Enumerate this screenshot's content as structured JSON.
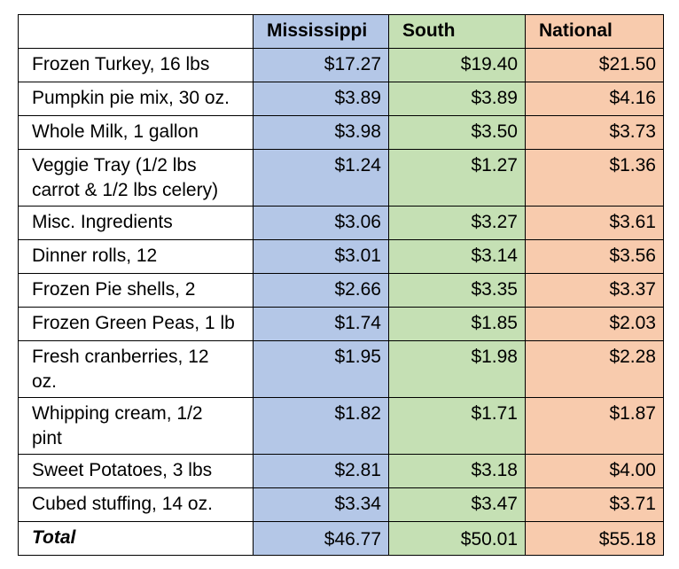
{
  "table": {
    "headers": [
      "",
      "Mississippi",
      "South",
      "National"
    ],
    "rows": [
      {
        "item": "Frozen Turkey, 16 lbs",
        "mississippi": "$17.27",
        "south": "$19.40",
        "national": "$21.50"
      },
      {
        "item": "Pumpkin pie mix, 30 oz.",
        "mississippi": "$3.89",
        "south": "$3.89",
        "national": "$4.16"
      },
      {
        "item": "Whole Milk, 1 gallon",
        "mississippi": "$3.98",
        "south": "$3.50",
        "national": "$3.73"
      },
      {
        "item_line1": "Veggie Tray (1/2 lbs",
        "item_line2": "carrot & 1/2 lbs celery)",
        "mississippi": "$1.24",
        "south": "$1.27",
        "national": "$1.36"
      },
      {
        "item": "Misc. Ingredients",
        "mississippi": "$3.06",
        "south": "$3.27",
        "national": "$3.61"
      },
      {
        "item": "Dinner rolls, 12",
        "mississippi": "$3.01",
        "south": "$3.14",
        "national": "$3.56"
      },
      {
        "item": "Frozen Pie shells, 2",
        "mississippi": "$2.66",
        "south": "$3.35",
        "national": "$3.37"
      },
      {
        "item": "Frozen Green Peas, 1 lb",
        "mississippi": "$1.74",
        "south": "$1.85",
        "national": "$2.03"
      },
      {
        "item_line1": "Fresh cranberries, 12",
        "item_line2": "oz.",
        "mississippi": "$1.95",
        "south": "$1.98",
        "national": "$2.28"
      },
      {
        "item_line1": "Whipping cream, 1/2",
        "item_line2": "pint",
        "mississippi": "$1.82",
        "south": "$1.71",
        "national": "$1.87"
      },
      {
        "item": "Sweet Potatoes, 3 lbs",
        "mississippi": "$2.81",
        "south": "$3.18",
        "national": "$4.00"
      },
      {
        "item": "Cubed stuffing, 14 oz.",
        "mississippi": "$3.34",
        "south": "$3.47",
        "national": "$3.71"
      }
    ],
    "total": {
      "item": "Total",
      "mississippi": "$46.77",
      "south": "$50.01",
      "national": "$55.18"
    }
  },
  "colors": {
    "mississippi": "#b4c7e7",
    "south": "#c5e0b4",
    "national": "#f8cbad"
  }
}
